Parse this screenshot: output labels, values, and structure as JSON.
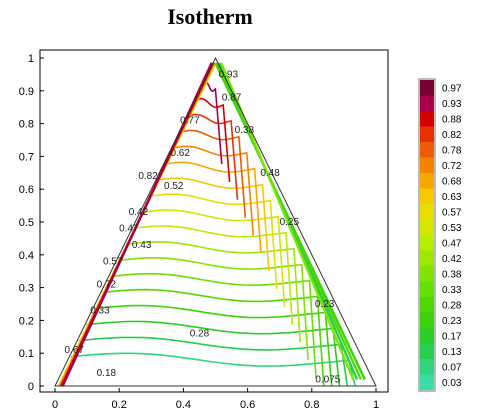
{
  "chart_data": {
    "type": "contour",
    "title": "Isotherm",
    "xlabel": "",
    "ylabel": "",
    "xlim": [
      0,
      1
    ],
    "ylim": [
      0,
      1
    ],
    "grid": false,
    "x_ticks": [
      "0",
      "0.2",
      "0.4",
      "0.6",
      "0.8",
      "1"
    ],
    "y_ticks": [
      "0",
      "0.1",
      "0.2",
      "0.3",
      "0.4",
      "0.5",
      "0.6",
      "0.7",
      "0.8",
      "0.9",
      "1"
    ],
    "domain_triangle": [
      [
        0,
        0
      ],
      [
        0.5,
        1
      ],
      [
        1,
        0
      ]
    ],
    "contour_levels": [
      0.075,
      0.13,
      0.18,
      0.23,
      0.28,
      0.33,
      0.38,
      0.43,
      0.48,
      0.52,
      0.57,
      0.62,
      0.67,
      0.72,
      0.77,
      0.82,
      0.87,
      0.93
    ],
    "contour_labels": [
      {
        "text": "0.93",
        "x": 0.54,
        "y": 0.95
      },
      {
        "text": "0.87",
        "x": 0.55,
        "y": 0.88
      },
      {
        "text": "0.77",
        "x": 0.42,
        "y": 0.81
      },
      {
        "text": "0.38",
        "x": 0.59,
        "y": 0.78
      },
      {
        "text": "0.62",
        "x": 0.39,
        "y": 0.71
      },
      {
        "text": "0.48",
        "x": 0.67,
        "y": 0.65
      },
      {
        "text": "0.52",
        "x": 0.37,
        "y": 0.61
      },
      {
        "text": "0.82",
        "x": 0.29,
        "y": 0.64
      },
      {
        "text": "0.42",
        "x": 0.26,
        "y": 0.53
      },
      {
        "text": "0.47",
        "x": 0.23,
        "y": 0.48
      },
      {
        "text": "0.43",
        "x": 0.27,
        "y": 0.43
      },
      {
        "text": "0.25",
        "x": 0.73,
        "y": 0.5
      },
      {
        "text": "0.57",
        "x": 0.18,
        "y": 0.38
      },
      {
        "text": "0.72",
        "x": 0.16,
        "y": 0.31
      },
      {
        "text": "0.23",
        "x": 0.84,
        "y": 0.25
      },
      {
        "text": "0.33",
        "x": 0.14,
        "y": 0.23
      },
      {
        "text": "0.28",
        "x": 0.45,
        "y": 0.16
      },
      {
        "text": "0.67",
        "x": 0.06,
        "y": 0.11
      },
      {
        "text": "0.18",
        "x": 0.16,
        "y": 0.04
      },
      {
        "text": "0.075",
        "x": 0.85,
        "y": 0.02
      }
    ],
    "colorbar": {
      "labels": [
        "0.97",
        "0.93",
        "0.88",
        "0.82",
        "0.78",
        "0.72",
        "0.68",
        "0.63",
        "0.57",
        "0.53",
        "0.47",
        "0.42",
        "0.38",
        "0.33",
        "0.28",
        "0.23",
        "0.17",
        "0.13",
        "0.07",
        "0.03"
      ],
      "colors": [
        "#7b0036",
        "#a8004a",
        "#d30000",
        "#e83000",
        "#f05a00",
        "#f48400",
        "#f7a800",
        "#f5c800",
        "#e8dc00",
        "#d2e800",
        "#b8ec00",
        "#9ce800",
        "#80e400",
        "#66e000",
        "#4ed800",
        "#3ad20a",
        "#2ccc28",
        "#28cc50",
        "#30d47c",
        "#3cdca8"
      ]
    }
  }
}
